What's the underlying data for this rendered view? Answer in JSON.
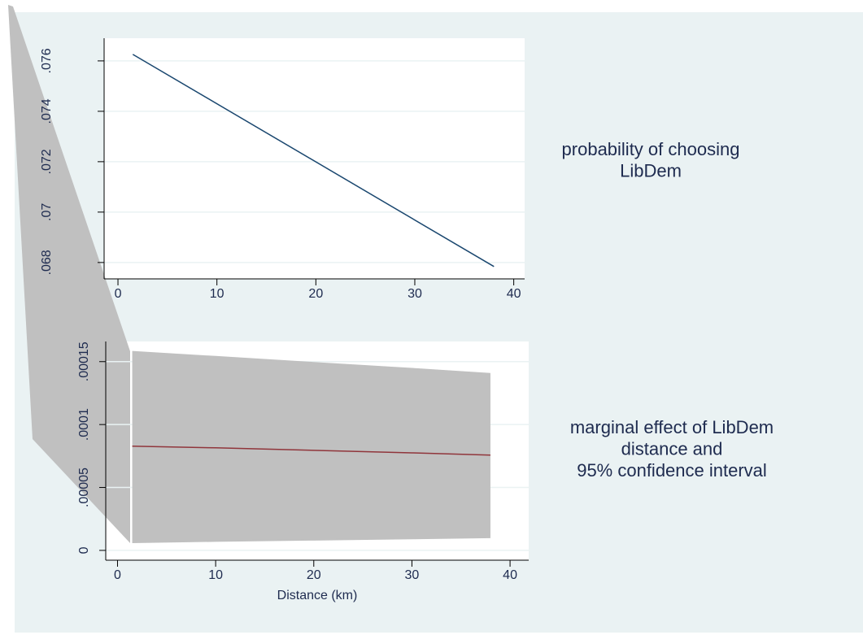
{
  "chart_data": [
    {
      "type": "line",
      "annotation": [
        "probability of choosing",
        "LibDem"
      ],
      "x": [
        1.5,
        38
      ],
      "series": [
        {
          "color": "#1a476f",
          "values": [
            0.07626,
            0.06784
          ]
        }
      ],
      "xlim": [
        -1.4,
        41.1
      ],
      "xticks": [
        0,
        10,
        20,
        30,
        40
      ],
      "ylim": [
        0.06735,
        0.0769
      ],
      "yticks": [
        {
          "value": 0.068,
          "label": ".068"
        },
        {
          "value": 0.07,
          "label": ".07"
        },
        {
          "value": 0.072,
          "label": ".072"
        },
        {
          "value": 0.074,
          "label": ".074"
        },
        {
          "value": 0.076,
          "label": ".076"
        }
      ],
      "grid": true
    },
    {
      "type": "line",
      "annotation": [
        "marginal effect of LibDem",
        "distance and",
        "95% confidence interval"
      ],
      "x_label": "Distance (km)",
      "x": [
        1.5,
        10,
        20,
        30,
        38
      ],
      "series": [
        {
          "color": "#90353b",
          "values": [
            8.28e-05,
            8.15e-05,
            7.95e-05,
            7.75e-05,
            7.57e-05
          ]
        }
      ],
      "band": {
        "color": "#c0c0c0",
        "lower": [
          5.8e-06,
          6.8e-06,
          7.8e-06,
          8.8e-06,
          9.7e-06
        ],
        "upper": [
          0.0001585,
          0.0001545,
          0.0001497,
          0.000145,
          0.000141
        ]
      },
      "xlim": [
        -1.2,
        41.9
      ],
      "xticks": [
        0,
        10,
        20,
        30,
        40
      ],
      "ylim": [
        -7.8e-06,
        0.000166
      ],
      "yticks": [
        0,
        {
          "value": 5e-05,
          "label": ".00005"
        },
        {
          "value": 0.0001,
          "label": ".0001"
        },
        {
          "value": 0.00015,
          "label": ".00015"
        }
      ],
      "grid": true
    }
  ]
}
